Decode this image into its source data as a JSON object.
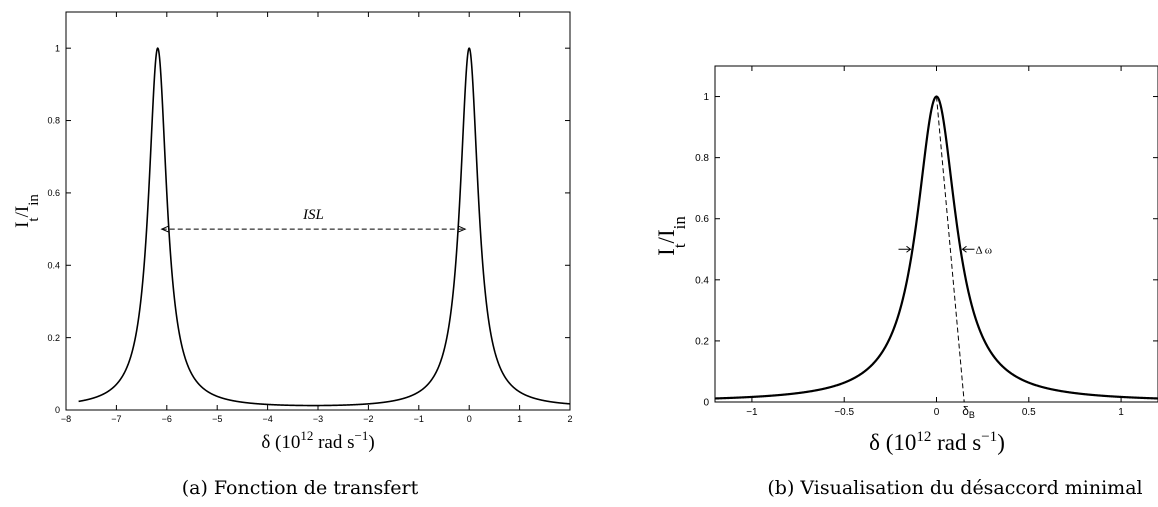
{
  "chart_data": [
    {
      "type": "line",
      "panel": "(a)",
      "caption": "(a) Fonction de transfert",
      "xlabel": "δ (10",
      "xlabel_exp": "12",
      "xlabel_tail": " rad s",
      "xlabel_exp2": "−1",
      "xlabel_close": ")",
      "ylabel_main": "I",
      "ylabel_sub1": "t",
      "ylabel_mid": "/I",
      "ylabel_sub2": "in",
      "xlim": [
        -8,
        2
      ],
      "ylim": [
        0,
        1.1
      ],
      "xticks": [
        -8,
        -7,
        -6,
        -5,
        -4,
        -3,
        -2,
        -1,
        0,
        1,
        2
      ],
      "xtick_labels": [
        "−8",
        "−7",
        "−6",
        "−5",
        "−4",
        "−3",
        "−2",
        "−1",
        "0",
        "1",
        "2"
      ],
      "yticks": [
        0,
        0.2,
        0.4,
        0.6,
        0.8,
        1
      ],
      "ytick_labels": [
        "0",
        "0.2",
        "0.4",
        "0.6",
        "0.8",
        "1"
      ],
      "curve": {
        "kind": "airy",
        "peaks": [
          -6.18,
          0
        ],
        "fsr": 6.18,
        "finesse": 80,
        "x_start": -7.75,
        "x_end": 2
      },
      "annotation": {
        "text": "ISL",
        "y": 0.5,
        "x_from": -6.18,
        "x_to": 0
      }
    },
    {
      "type": "line",
      "panel": "(b)",
      "caption": "(b) Visualisation du désaccord minimal",
      "xlabel": "δ (10",
      "xlabel_exp": "12",
      "xlabel_tail": " rad s",
      "xlabel_exp2": "−1",
      "xlabel_close": ")",
      "ylabel_main": "I",
      "ylabel_sub1": "t",
      "ylabel_mid": "/I",
      "ylabel_sub2": "in",
      "xlim": [
        -1.2,
        1.2
      ],
      "ylim": [
        0,
        1.1
      ],
      "xticks": [
        -1,
        -0.5,
        0,
        0.5,
        1
      ],
      "xtick_labels": [
        "−1",
        "−0.5",
        "0",
        "0.5",
        "1"
      ],
      "yticks": [
        0,
        0.2,
        0.4,
        0.6,
        0.8,
        1
      ],
      "ytick_labels": [
        "0",
        "0.2",
        "0.4",
        "0.6",
        "0.8",
        "1"
      ],
      "curve": {
        "kind": "lorentzian",
        "center": 0,
        "hwhm": 0.13
      },
      "tangent_line": {
        "from": [
          0,
          1
        ],
        "to": [
          0.15,
          0
        ]
      },
      "annotations": [
        {
          "text": "Δ ω",
          "x": 0.13,
          "y": 0.5
        },
        {
          "text": "δ",
          "sub": "B",
          "x": 0.15,
          "y": 0
        }
      ]
    }
  ]
}
